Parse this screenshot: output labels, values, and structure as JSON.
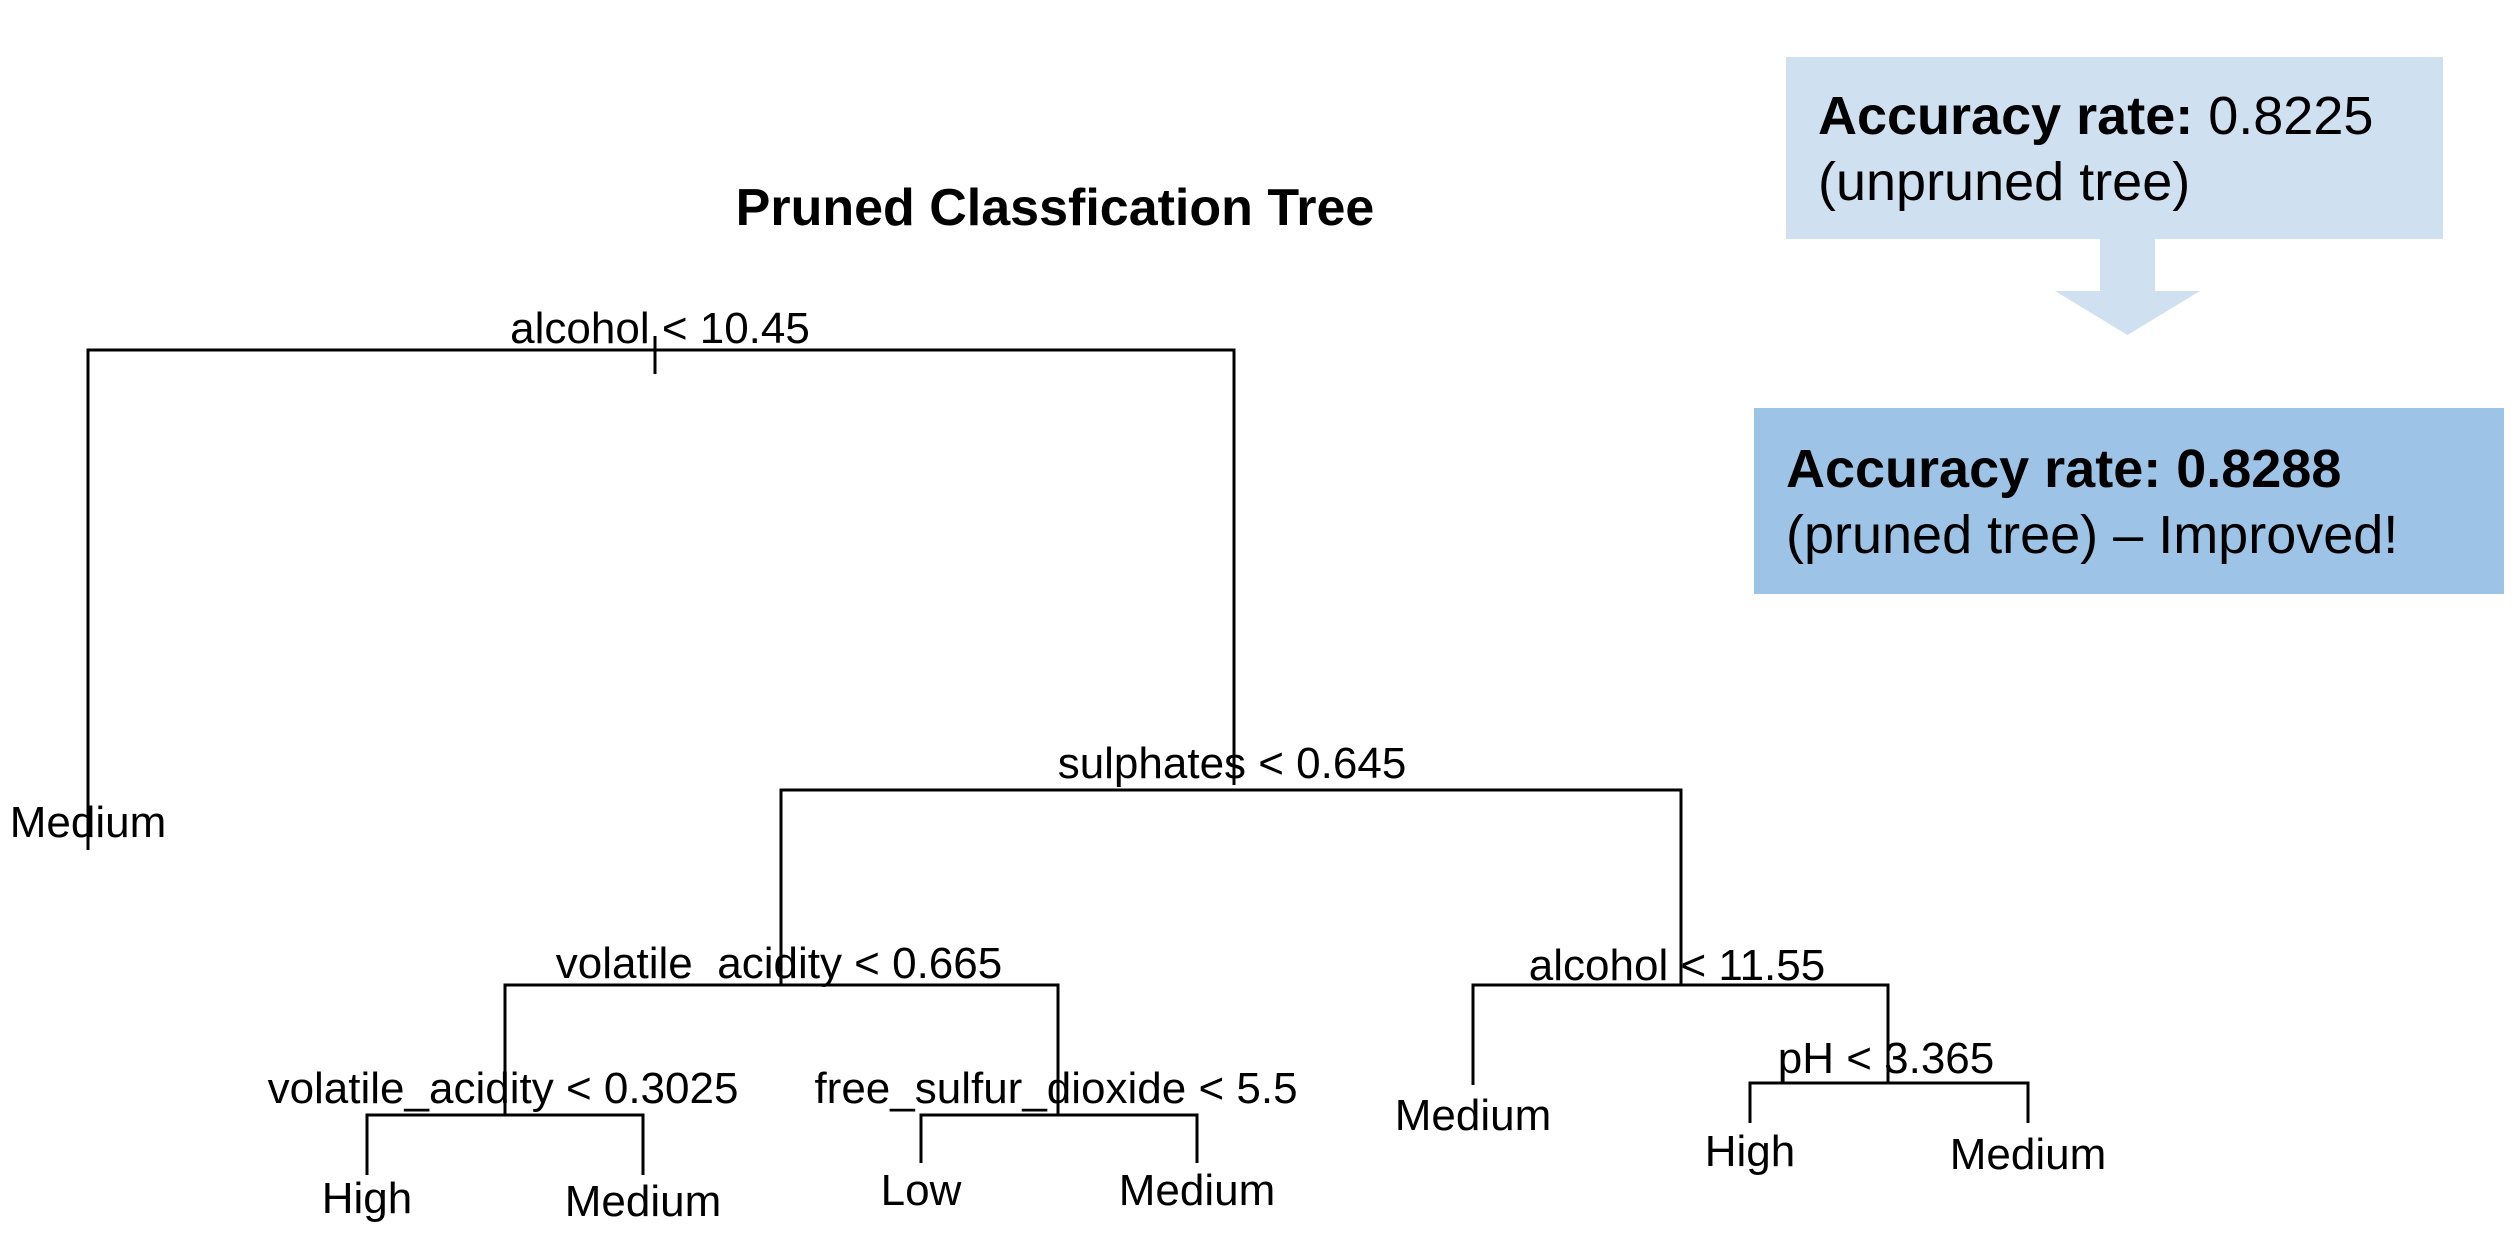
{
  "diagram": {
    "title": "Pruned Classfication Tree",
    "splits": [
      {
        "id": "s1",
        "label": "alcohol < 10.45"
      },
      {
        "id": "s2",
        "label": "sulphates < 0.645"
      },
      {
        "id": "s3",
        "label": "volatile_acidity < 0.665"
      },
      {
        "id": "s4",
        "label": "alcohol < 11.55"
      },
      {
        "id": "s5",
        "label": "volatile_acidity < 0.3025"
      },
      {
        "id": "s6",
        "label": "free_sulfur_dioxide < 5.5"
      },
      {
        "id": "s7",
        "label": "pH < 3.365"
      }
    ],
    "leaves": [
      {
        "id": "l1",
        "label": "Medium"
      },
      {
        "id": "l2",
        "label": "High"
      },
      {
        "id": "l3",
        "label": "Medium"
      },
      {
        "id": "l4",
        "label": "Low"
      },
      {
        "id": "l5",
        "label": "Medium"
      },
      {
        "id": "l6",
        "label": "Medium"
      },
      {
        "id": "l7",
        "label": "High"
      },
      {
        "id": "l8",
        "label": "Medium"
      }
    ],
    "edges": [
      [
        "s1",
        "l1"
      ],
      [
        "s1",
        "s2"
      ],
      [
        "s2",
        "s3"
      ],
      [
        "s2",
        "s4"
      ],
      [
        "s3",
        "s5"
      ],
      [
        "s3",
        "s6"
      ],
      [
        "s5",
        "l2"
      ],
      [
        "s5",
        "l3"
      ],
      [
        "s6",
        "l4"
      ],
      [
        "s6",
        "l5"
      ],
      [
        "s4",
        "l6"
      ],
      [
        "s4",
        "s7"
      ],
      [
        "s7",
        "l7"
      ],
      [
        "s7",
        "l8"
      ]
    ]
  },
  "callouts": {
    "unpruned": {
      "label": "Accuracy rate:",
      "value": "0.8225",
      "note": "(unpruned tree)",
      "color": "#CFE0F1"
    },
    "pruned": {
      "label": "Accuracy rate: 0.8288",
      "note": "(pruned tree) – Improved!",
      "color": "#9DC3E6"
    },
    "arrow_color": "#CFE0F1"
  }
}
